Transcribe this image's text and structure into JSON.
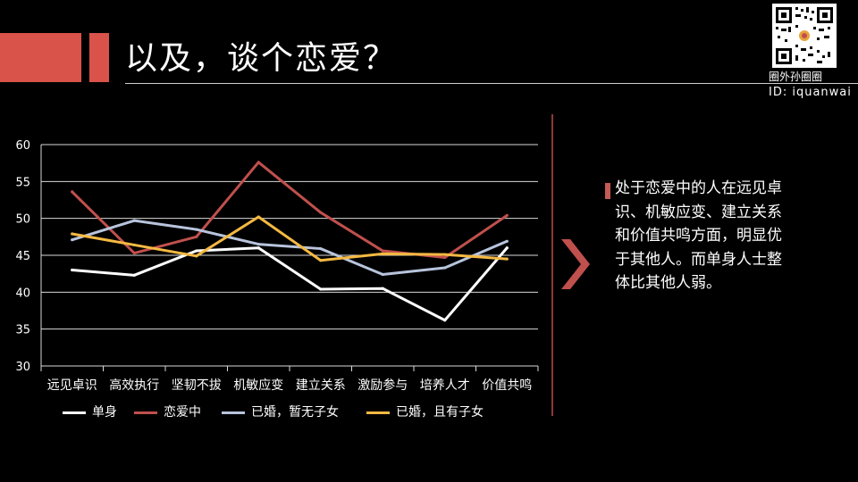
{
  "title": "以及，谈个恋爱？",
  "brand": {
    "name": "圈外孙圈圈",
    "id": "ID: iquanwai"
  },
  "note": "处于恋爱中的人在远见卓识、机敏应变、建立关系和价值共鸣方面，明显优于其他人。而单身人士整体比其他人弱。",
  "chart_data": {
    "type": "line",
    "categories": [
      "远见卓识",
      "高效执行",
      "坚韧不拔",
      "机敏应变",
      "建立关系",
      "激励参与",
      "培养人才",
      "价值共鸣"
    ],
    "y_ticks": [
      "30",
      "35",
      "40",
      "45",
      "50",
      "55",
      "60"
    ],
    "ylim": [
      30,
      60
    ],
    "grid": true,
    "legend_position": "bottom",
    "series": [
      {
        "name": "单身",
        "color": "#ffffff",
        "values": [
          43.0,
          42.3,
          45.6,
          46.0,
          40.4,
          40.5,
          36.2,
          46.0
        ]
      },
      {
        "name": "恋爱中",
        "color": "#c0504d",
        "values": [
          53.6,
          45.3,
          47.5,
          57.6,
          50.8,
          45.6,
          44.7,
          50.4
        ]
      },
      {
        "name": "已婚，暂无子女",
        "color": "#b8c4dc",
        "values": [
          47.1,
          49.7,
          48.5,
          46.5,
          45.9,
          42.4,
          43.3,
          46.9
        ]
      },
      {
        "name": "已婚，且有子女",
        "color": "#f4b942",
        "values": [
          47.9,
          46.4,
          44.9,
          50.2,
          44.3,
          45.2,
          45.1,
          44.5
        ]
      }
    ]
  }
}
